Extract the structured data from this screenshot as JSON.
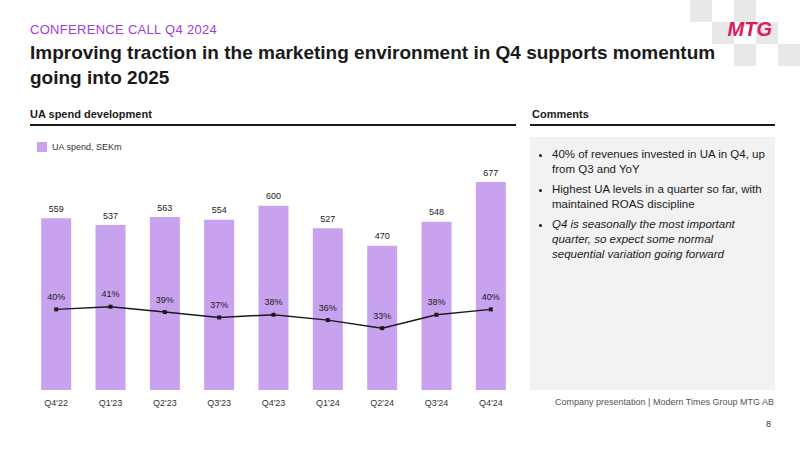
{
  "slide": {
    "kicker": "CONFERENCE CALL Q4 2024",
    "logo": "MTG",
    "title": "Improving traction in the marketing environment in Q4 supports momentum going into 2025",
    "chart_heading": "UA spend development",
    "comments_heading": "Comments",
    "comments": [
      "40% of revenues invested in UA in Q4, up from Q3 and YoY",
      "Highest UA levels in a quarter so far, with maintained ROAS discipline",
      "Q4 is seasonally the most important quarter, so expect some normal sequential variation going forward"
    ],
    "footer": "Company presentation | Modern Times Group MTG AB",
    "page": "8"
  },
  "chart_data": {
    "type": "bar",
    "categories": [
      "Q4'22",
      "Q1'23",
      "Q2'23",
      "Q3'23",
      "Q4'23",
      "Q1'24",
      "Q2'24",
      "Q3'24",
      "Q4'24"
    ],
    "series": [
      {
        "name": "UA spend, SEKm",
        "type": "bar",
        "color": "#c9a2ef",
        "values": [
          559,
          537,
          563,
          554,
          600,
          527,
          470,
          548,
          677
        ]
      },
      {
        "type": "line",
        "axis": "y2",
        "color": "#1a1a1a",
        "marker": "square",
        "line_style": "solid",
        "values": [
          40,
          41,
          39,
          37,
          38,
          36,
          33,
          38,
          40
        ],
        "value_labels": [
          "40%",
          "41%",
          "39%",
          "37%",
          "38%",
          "36%",
          "33%",
          "38%",
          "40%"
        ]
      }
    ],
    "ylim": [
      0,
      700
    ],
    "y2lim": [
      10,
      90
    ],
    "data_labels": true,
    "tick_labels": "x",
    "grid": false,
    "legend": "top-left"
  }
}
